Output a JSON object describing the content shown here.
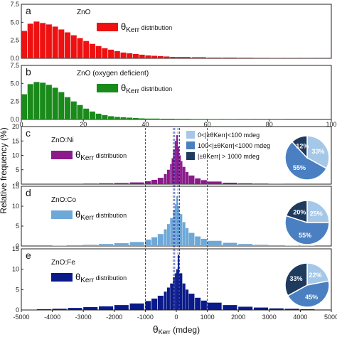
{
  "ylabel": "Relative frequency (%)",
  "xlabel_theta": "θ",
  "xlabel_sub": "Kerr",
  "xlabel_unit": "(mdeg)",
  "top_ticks_x": [
    "0",
    "20",
    "40",
    "60",
    "80",
    "100"
  ],
  "bottom_ticks_x": [
    "-5000",
    "-4000",
    "-3000",
    "-2000",
    "-1000",
    "0",
    "1000",
    "2000",
    "3000",
    "4000",
    "5000"
  ],
  "legend": {
    "theta": "θ",
    "sub": "Kerr",
    "suffix": " distribution"
  },
  "pie_legend": [
    {
      "label": "0<|±θKerr|<100 mdeg",
      "color": "#a6c8e8"
    },
    {
      "label": "100<|±θKerr|<1000 mdeg",
      "color": "#4a7fc1"
    },
    {
      "label": "|±θKerr| > 1000 mdeg",
      "color": "#1f3a5f"
    }
  ],
  "chart_data": [
    {
      "type": "bar",
      "panel": "a",
      "sample": "ZnO",
      "color": "#ee1111",
      "xlim": [
        0,
        100
      ],
      "ylim": [
        0,
        7.5
      ],
      "yticks": [
        "0.0",
        "2.5",
        "5.0",
        "7.5"
      ],
      "x": [
        0,
        2,
        4,
        6,
        8,
        10,
        12,
        14,
        16,
        18,
        20,
        22,
        24,
        26,
        28,
        30,
        32,
        34,
        36,
        38,
        40,
        42,
        44,
        46,
        48,
        50,
        55,
        60,
        65,
        70,
        75,
        80,
        85,
        90,
        95
      ],
      "values": [
        3.8,
        4.8,
        5.1,
        4.9,
        4.7,
        4.4,
        4.0,
        3.6,
        3.2,
        2.8,
        2.4,
        2.0,
        1.7,
        1.4,
        1.2,
        1.0,
        0.8,
        0.7,
        0.6,
        0.5,
        0.4,
        0.35,
        0.3,
        0.25,
        0.2,
        0.18,
        0.15,
        0.1,
        0.1,
        0.08,
        0.06,
        0.05,
        0.04,
        0.03,
        0.02
      ]
    },
    {
      "type": "bar",
      "panel": "b",
      "sample": "ZnO (oxygen deficient)",
      "color": "#1a8a1a",
      "xlim": [
        0,
        100
      ],
      "ylim": [
        0,
        7.5
      ],
      "yticks": [
        "0.0",
        "2.5",
        "5.0",
        "7.5"
      ],
      "x": [
        0,
        2,
        4,
        6,
        8,
        10,
        12,
        14,
        16,
        18,
        20,
        22,
        24,
        26,
        28,
        30,
        32,
        34,
        36,
        38,
        40,
        45,
        50,
        55,
        60,
        65,
        70,
        75,
        80
      ],
      "values": [
        3.5,
        4.9,
        5.2,
        5.1,
        4.8,
        4.4,
        3.8,
        3.1,
        2.5,
        2.0,
        1.5,
        1.1,
        0.8,
        0.6,
        0.45,
        0.35,
        0.3,
        0.25,
        0.2,
        0.15,
        0.12,
        0.1,
        0.08,
        0.06,
        0.05,
        0.04,
        0.03,
        0.02,
        0.02
      ]
    },
    {
      "type": "bar",
      "panel": "c",
      "sample": "ZnO:Ni",
      "color": "#8b1a8b",
      "xlim": [
        -5000,
        5000
      ],
      "ylim": [
        0,
        20
      ],
      "yticks": [
        "0",
        "5",
        "10",
        "15",
        "20"
      ],
      "x": [
        -3000,
        -2500,
        -2000,
        -1500,
        -1000,
        -800,
        -600,
        -400,
        -300,
        -200,
        -150,
        -100,
        -50,
        0,
        50,
        100,
        150,
        200,
        300,
        400,
        600,
        800,
        1000,
        1500,
        2000,
        2500,
        3000
      ],
      "values": [
        0.2,
        0.3,
        0.4,
        0.6,
        1.0,
        1.5,
        2.2,
        3.5,
        5.0,
        7.0,
        9.0,
        12.0,
        15.0,
        17.0,
        13.0,
        10.0,
        8.0,
        6.0,
        4.2,
        3.0,
        2.0,
        1.4,
        0.9,
        0.5,
        0.3,
        0.2,
        0.1
      ],
      "pie": [
        33,
        55,
        12
      ]
    },
    {
      "type": "bar",
      "panel": "d",
      "sample": "ZnO:Co",
      "color": "#6ea8d8",
      "xlim": [
        -5000,
        5000
      ],
      "ylim": [
        0,
        15
      ],
      "yticks": [
        "0",
        "5",
        "10",
        "15"
      ],
      "x": [
        -4000,
        -3500,
        -3000,
        -2500,
        -2000,
        -1500,
        -1000,
        -800,
        -600,
        -400,
        -300,
        -200,
        -100,
        -50,
        0,
        50,
        100,
        200,
        300,
        400,
        600,
        800,
        1000,
        1500,
        2000,
        2500,
        3000,
        3500,
        4000
      ],
      "values": [
        0.1,
        0.2,
        0.3,
        0.5,
        0.7,
        1.0,
        1.6,
        2.2,
        3.0,
        4.2,
        5.5,
        7.0,
        9.0,
        10.5,
        12.5,
        10.0,
        8.0,
        6.0,
        4.5,
        3.3,
        2.4,
        1.8,
        1.3,
        0.8,
        0.5,
        0.3,
        0.2,
        0.1,
        0.1
      ],
      "pie": [
        25,
        55,
        20
      ]
    },
    {
      "type": "bar",
      "panel": "e",
      "sample": "ZnO:Fe",
      "color": "#0a1a8a",
      "xlim": [
        -5000,
        5000
      ],
      "ylim": [
        0,
        15
      ],
      "yticks": [
        "0",
        "5",
        "10",
        "15"
      ],
      "x": [
        -4500,
        -4000,
        -3500,
        -3000,
        -2500,
        -2000,
        -1500,
        -1000,
        -800,
        -600,
        -400,
        -300,
        -200,
        -100,
        -50,
        0,
        50,
        100,
        200,
        300,
        400,
        600,
        800,
        1000,
        1500,
        2000,
        2500,
        3000,
        3500,
        4000,
        4500
      ],
      "values": [
        0.2,
        0.3,
        0.5,
        0.7,
        0.9,
        1.2,
        1.6,
        2.2,
        2.8,
        3.5,
        4.5,
        5.5,
        6.5,
        8.0,
        9.0,
        10.0,
        13.5,
        9.0,
        6.5,
        5.0,
        4.0,
        3.0,
        2.3,
        1.8,
        1.2,
        0.8,
        0.6,
        0.4,
        0.3,
        0.2,
        0.1
      ],
      "pie": [
        22,
        45,
        33
      ]
    }
  ]
}
